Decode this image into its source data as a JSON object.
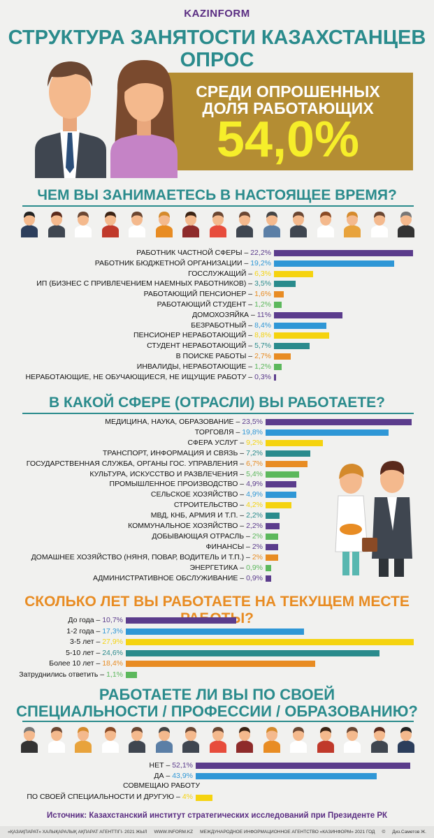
{
  "logo": "KAZINFORM",
  "title_line1": "СТРУКТУРА ЗАНЯТОСТИ КАЗАХСТАНЦЕВ",
  "title_line2": "ОПРОС",
  "banner": {
    "line1": "СРЕДИ ОПРОШЕННЫХ",
    "line2": "ДОЛЯ  РАБОТАЮЩИХ",
    "value": "54,0%"
  },
  "colors": {
    "purple": "#5b3c8c",
    "blue": "#2f97d6",
    "yellow": "#f5d30f",
    "teal": "#2a8b8c",
    "green": "#5cb85c",
    "orange": "#e88c23",
    "gold": "#b48d33"
  },
  "chart_data": [
    {
      "type": "bar",
      "title": "ЧЕМ ВЫ ЗАНИМАЕТЕСЬ В НАСТОЯЩЕЕ ВРЕМЯ?",
      "categories": [
        "РАБОТНИК ЧАСТНОЙ СФЕРЫ",
        "РАБОТНИК БЮДЖЕТНОЙ ОРГАНИЗАЦИИ",
        "ГОССЛУЖАЩИЙ",
        "ИП (БИЗНЕС С ПРИВЛЕЧЕНИЕМ НАЕМНЫХ РАБОТНИКОВ)",
        "РАБОТАЮЩИЙ ПЕНСИОНЕР",
        "РАБОТАЮЩИЙ СТУДЕНТ",
        "ДОМОХОЗЯЙКА",
        "БЕЗРАБОТНЫЙ",
        "ПЕНСИОНЕР НЕРАБОТАЮЩИЙ",
        "СТУДЕНТ НЕРАБОТАЮЩИЙ",
        "В ПОИСКЕ РАБОТЫ",
        "ИНВАЛИДЫ, НЕРАБОТАЮЩИЕ",
        "НЕРАБОТАЮЩИЕ, НЕ ОБУЧАЮЩИЕСЯ, НЕ ИЩУЩИЕ РАБОТУ"
      ],
      "values": [
        22.2,
        19.2,
        6.3,
        3.5,
        1.6,
        1.2,
        11,
        8.4,
        8.8,
        5.7,
        2.7,
        1.2,
        0.3
      ],
      "value_labels": [
        "22,2%",
        "19,2%",
        "6,3%",
        "3,5%",
        "1,6%",
        "1,2%",
        "11%",
        "8,4%",
        "8,8%",
        "5,7%",
        "2,7%",
        "1,2%",
        "0,3%"
      ],
      "bar_colors": [
        "#5b3c8c",
        "#2f97d6",
        "#f5d30f",
        "#2a8b8c",
        "#e88c23",
        "#5cb85c",
        "#5b3c8c",
        "#2f97d6",
        "#f5d30f",
        "#2a8b8c",
        "#e88c23",
        "#5cb85c",
        "#5b3c8c"
      ]
    },
    {
      "type": "bar",
      "title": "В КАКОЙ СФЕРЕ (ОТРАСЛИ) ВЫ РАБОТАЕТЕ?",
      "categories": [
        "МЕДИЦИНА, НАУКА, ОБРАЗОВАНИЕ",
        "ТОРГОВЛЯ",
        "СФЕРА УСЛУГ",
        "ТРАНСПОРТ, ИНФОРМАЦИЯ И СВЯЗЬ",
        "ГОСУДАРСТВЕННАЯ СЛУЖБА, ОРГАНЫ ГОС. УПРАВЛЕНИЯ",
        "КУЛЬТУРА, ИСКУССТВО И РАЗВЛЕЧЕНИЯ",
        "ПРОМЫШЛЕННОЕ ПРОИЗВОДСТВО",
        "СЕЛЬСКОЕ ХОЗЯЙСТВО",
        "СТРОИТЕЛЬСТВО",
        "МВД, КНБ, АРМИЯ И Т.П.",
        "КОММУНАЛЬНОЕ ХОЗЯЙСТВО",
        "ДОБЫВАЮЩАЯ ОТРАСЛЬ",
        "ФИНАНСЫ",
        "ДОМАШНЕЕ ХОЗЯЙСТВО (НЯНЯ, ПОВАР, ВОДИТЕЛЬ И Т.П.)",
        "ЭНЕРГЕТИКА",
        "АДМИНИСТРАТИВНОЕ ОБСЛУЖИВАНИЕ"
      ],
      "values": [
        23.5,
        19.8,
        9.2,
        7.2,
        6.7,
        5.4,
        4.9,
        4.9,
        4.2,
        2.2,
        2.2,
        2,
        2,
        2,
        0.9,
        0.9
      ],
      "value_labels": [
        "23,5%",
        "19,8%",
        "9,2%",
        "7,2%",
        "6,7%",
        "5,4%",
        "4,9%",
        "4,9%",
        "4,2%",
        "2,2%",
        "2,2%",
        "2%",
        "2%",
        "2%",
        "0,9%",
        "0,9%"
      ],
      "bar_colors": [
        "#5b3c8c",
        "#2f97d6",
        "#f5d30f",
        "#2a8b8c",
        "#e88c23",
        "#5cb85c",
        "#5b3c8c",
        "#2f97d6",
        "#f5d30f",
        "#2a8b8c",
        "#5b3c8c",
        "#5cb85c",
        "#5b3c8c",
        "#e88c23",
        "#5cb85c",
        "#5b3c8c"
      ]
    },
    {
      "type": "bar",
      "title": "СКОЛЬКО ЛЕТ ВЫ РАБОТАЕТЕ НА ТЕКУЩЕМ МЕСТЕ РАБОТЫ?",
      "categories": [
        "До года",
        "1-2 года",
        "3-5 лет",
        "5-10 лет",
        "Более 10 лет",
        "Затруднились ответить"
      ],
      "values": [
        10.7,
        17.3,
        27.9,
        24.6,
        18.4,
        1.1
      ],
      "value_labels": [
        "10,7%",
        "17,3%",
        "27,9%",
        "24,6%",
        "18,4%",
        "1,1%"
      ],
      "bar_colors": [
        "#5b3c8c",
        "#2f97d6",
        "#f5d30f",
        "#2a8b8c",
        "#e88c23",
        "#5cb85c"
      ]
    },
    {
      "type": "bar",
      "title": "РАБОТАЕТЕ ЛИ ВЫ ПО СВОЕЙ СПЕЦИАЛЬНОСТИ / ПРОФЕССИИ / ОБРАЗОВАНИЮ?",
      "categories": [
        "НЕТ",
        "ДА",
        "СОВМЕЩАЮ РАБОТУ ПО СВОЕЙ СПЕЦИАЛЬНОСТИ И ДРУГУЮ"
      ],
      "values": [
        52.1,
        43.9,
        4
      ],
      "value_labels": [
        "52,1%",
        "43,9%",
        "4%"
      ],
      "bar_colors": [
        "#5b3c8c",
        "#2f97d6",
        "#f5d30f"
      ]
    }
  ],
  "sec4_title_line1": "РАБОТАЕТЕ ЛИ ВЫ ПО СВОЕЙ",
  "sec4_title_line2": "СПЕЦИАЛЬНОСТИ / ПРОФЕССИИ / ОБРАЗОВАНИЮ?",
  "sec4_label3_line1": "СОВМЕЩАЮ РАБОТУ",
  "sec4_label3_line2": "ПО СВОЕЙ СПЕЦИАЛЬНОСТИ И ДРУГУЮ",
  "source": "Источник: Казахстанский институт стратегических исследований при Президенте РК",
  "footer": [
    "«ҚАЗАҚПАРАТ» ХАЛЫҚАРАЛЫҚ АҚПАРАТ АГЕНТТІГІ- 2021 ЖЫЛ",
    "WWW.INFORM.KZ",
    "МЕЖДУНАРОДНОЕ ИНФОРМАЦИОННОЕ АГЕНТСТВО «КАЗИНФОРМ» 2021 ГОД",
    "©",
    "Диз.Саметов Ж."
  ],
  "icons": [
    "person-icon"
  ]
}
